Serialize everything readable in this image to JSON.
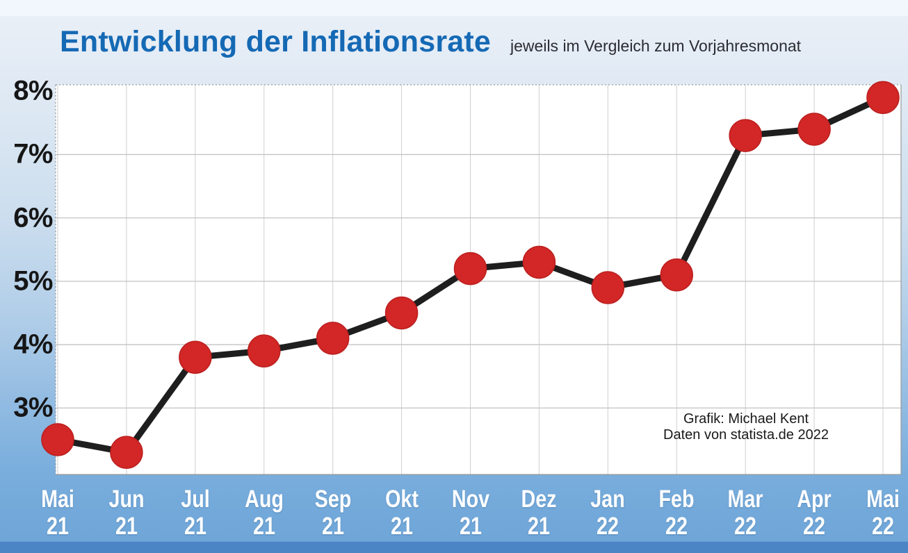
{
  "chart_data": {
    "type": "line",
    "title": "Entwicklung der Inflationsrate",
    "subtitle": "jeweils im Vergleich zum Vorjahresmonat",
    "categories": [
      "Mai 21",
      "Jun 21",
      "Jul 21",
      "Aug 21",
      "Sep 21",
      "Okt 21",
      "Nov 21",
      "Dez 21",
      "Jan 22",
      "Feb 22",
      "Mar 22",
      "Apr 22",
      "Mai 22"
    ],
    "values": [
      2.5,
      2.3,
      3.8,
      3.9,
      4.1,
      4.5,
      5.2,
      5.3,
      4.9,
      5.1,
      7.3,
      7.4,
      7.9
    ],
    "unit": "%",
    "yticks": [
      3,
      4,
      5,
      6,
      7,
      8
    ],
    "ytick_labels": [
      "3%",
      "4%",
      "5%",
      "6%",
      "7%",
      "8%"
    ],
    "ylim": [
      1.95,
      8.12
    ],
    "grid": true,
    "legend": "none",
    "attribution": [
      "Grafik: Michael Kent",
      "Daten von statista.de 2022"
    ]
  },
  "colors": {
    "title": "#1569b4",
    "subtitle": "#2b2b33",
    "line": "#1e1e1e",
    "marker": "#d22726",
    "marker_edge": "#bb1f1f",
    "grid_h": "#c3c3c3",
    "grid_v": "#cfcfcf",
    "frame": "#9a9a9a",
    "plot_bg": "#ffffff",
    "y_label": "#161616",
    "x_label": "#ffffff",
    "band_bottom": "#4b85c5"
  }
}
